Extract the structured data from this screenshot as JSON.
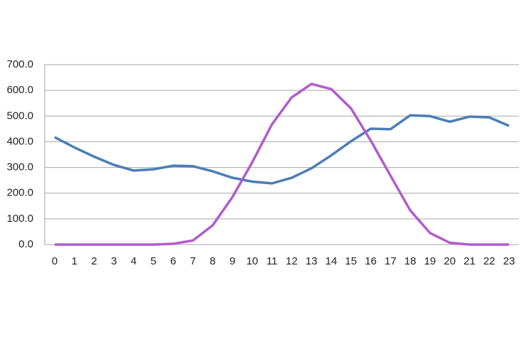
{
  "chart_data": {
    "type": "line",
    "categories": [
      "0",
      "1",
      "2",
      "3",
      "4",
      "5",
      "6",
      "7",
      "8",
      "9",
      "10",
      "11",
      "12",
      "13",
      "14",
      "15",
      "16",
      "17",
      "18",
      "19",
      "20",
      "21",
      "22",
      "23"
    ],
    "series": [
      {
        "color": "#4a7eb5",
        "values": [
          418,
          378,
          342,
          310,
          288,
          293,
          307,
          305,
          285,
          260,
          245,
          238,
          260,
          297,
          347,
          402,
          451,
          449,
          503,
          500,
          478,
          498,
          495,
          462
        ]
      },
      {
        "color": "#b05ccc",
        "values": [
          0,
          0,
          0,
          0,
          0,
          0,
          3,
          16,
          75,
          185,
          320,
          468,
          573,
          625,
          605,
          530,
          405,
          268,
          133,
          45,
          7,
          0,
          0,
          0
        ]
      }
    ],
    "ylim": [
      0,
      700
    ],
    "yticks": [
      {
        "value": 0,
        "label": "0.0"
      },
      {
        "value": 100,
        "label": "100.0"
      },
      {
        "value": 200,
        "label": "200.0"
      },
      {
        "value": 300,
        "label": "300.0"
      },
      {
        "value": 400,
        "label": "400.0"
      },
      {
        "value": 500,
        "label": "500.0"
      },
      {
        "value": 600,
        "label": "600.0"
      },
      {
        "value": 700,
        "label": "700.0"
      }
    ],
    "grid": true
  }
}
